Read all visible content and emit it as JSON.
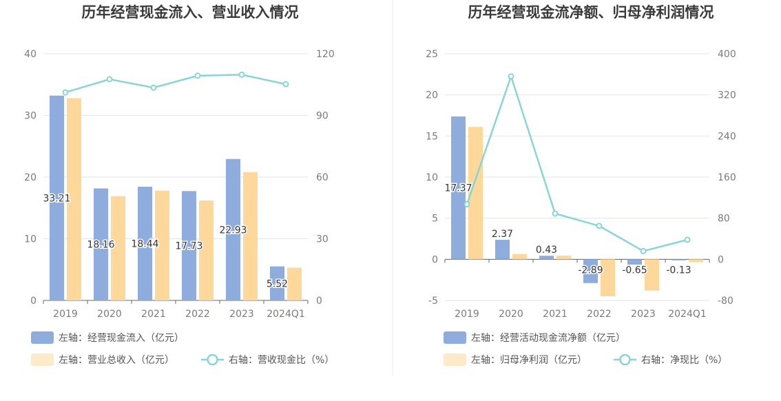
{
  "chart_data": [
    {
      "type": "bar",
      "title": "历年经营现金流入、营业收入情况",
      "categories": [
        "2019",
        "2020",
        "2021",
        "2022",
        "2023",
        "2024Q1"
      ],
      "left_axis": {
        "min": 0,
        "max": 40,
        "ticks": [
          "0",
          "10",
          "20",
          "30",
          "40"
        ]
      },
      "right_axis": {
        "min": 0,
        "max": 120,
        "ticks": [
          "0",
          "30",
          "60",
          "90",
          "120"
        ]
      },
      "series": [
        {
          "name": "左轴：经营现金流入（亿元）",
          "kind": "bar",
          "axis": "left",
          "color": "#8eacdc",
          "values": [
            33.21,
            18.16,
            18.44,
            17.73,
            22.93,
            5.52
          ],
          "labels": [
            "33.21",
            "18.16",
            "18.44",
            "17.73",
            "22.93",
            "5.52"
          ]
        },
        {
          "name": "左轴：营业总收入（亿元）",
          "kind": "bar",
          "axis": "left",
          "color": "#fdd89a",
          "values": [
            32.8,
            16.9,
            17.8,
            16.2,
            20.8,
            5.3
          ]
        },
        {
          "name": "右轴：营收现金比（%）",
          "kind": "line",
          "axis": "right",
          "color": "#88d4d8",
          "values": [
            101.2,
            107.6,
            103.5,
            109.3,
            109.8,
            105.2
          ]
        }
      ]
    },
    {
      "type": "bar",
      "title": "历年经营现金流净额、归母净利润情况",
      "categories": [
        "2019",
        "2020",
        "2021",
        "2022",
        "2023",
        "2024Q1"
      ],
      "left_axis": {
        "min": -5,
        "max": 25,
        "ticks": [
          "-5",
          "0",
          "5",
          "10",
          "15",
          "20",
          "25"
        ]
      },
      "right_axis": {
        "min": -80,
        "max": 400,
        "ticks": [
          "-80",
          "0",
          "80",
          "160",
          "240",
          "320",
          "400"
        ]
      },
      "series": [
        {
          "name": "左轴：经营活动现金流净额（亿元）",
          "kind": "bar",
          "axis": "left",
          "color": "#8eacdc",
          "values": [
            17.37,
            2.37,
            0.43,
            -2.89,
            -0.65,
            -0.13
          ],
          "labels": [
            "17.37",
            "2.37",
            "0.43",
            "-2.89",
            "-0.65",
            "-0.13"
          ]
        },
        {
          "name": "左轴：归母净利润（亿元）",
          "kind": "bar",
          "axis": "left",
          "color": "#fdd89a",
          "values": [
            16.1,
            0.65,
            0.45,
            -4.5,
            -3.8,
            -0.35
          ]
        },
        {
          "name": "右轴：净现比（%）",
          "kind": "line",
          "axis": "right",
          "color": "#88d4d8",
          "values": [
            107,
            356,
            89,
            65,
            16,
            38
          ]
        }
      ]
    }
  ]
}
